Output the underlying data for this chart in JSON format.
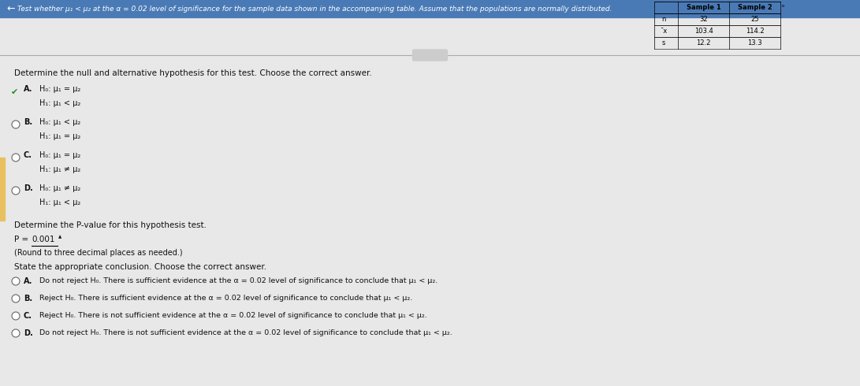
{
  "title_text": "Test whether μ₁ < μ₂ at the α = 0.02 level of significance for the sample data shown in the accompanying table. Assume that the populations are normally distributed.",
  "table_rows": [
    [
      "n",
      "32",
      "25"
    ],
    [
      "¯x",
      "103.4",
      "114.2"
    ],
    [
      "s",
      "12.2",
      "13.3"
    ]
  ],
  "section1_title": "Determine the null and alternative hypothesis for this test. Choose the correct answer.",
  "hyp_options": [
    [
      "A.",
      "H₀: μ₁ = μ₂",
      "H₁: μ₁ < μ₂",
      true
    ],
    [
      "B.",
      "H₀: μ₁ < μ₂",
      "H₁: μ₁ = μ₂",
      false
    ],
    [
      "C.",
      "H₀: μ₁ = μ₂",
      "H₁: μ₁ ≠ μ₂",
      false
    ],
    [
      "D.",
      "H₀: μ₁ ≠ μ₂",
      "H₁: μ₁ < μ₂",
      false
    ]
  ],
  "section2_title": "Determine the P-value for this hypothesis test.",
  "pvalue": "0.001",
  "pvalue_note": "(Round to three decimal places as needed.)",
  "section3_title": "State the appropriate conclusion. Choose the correct answer.",
  "conc_options": [
    [
      "A.",
      "Do not reject H₀. There is sufficient evidence at the α = 0.02 level of significance to conclude that μ₁ < μ₂."
    ],
    [
      "B.",
      "Reject H₀. There is sufficient evidence at the α = 0.02 level of significance to conclude that μ₁ < μ₂."
    ],
    [
      "C.",
      "Reject H₀. There is not sufficient evidence at the α = 0.02 level of significance to conclude that μ₁ < μ₂."
    ],
    [
      "D.",
      "Do not reject H₀. There is not sufficient evidence at the α = 0.02 level of significance to conclude that μ₁ < μ₂."
    ]
  ],
  "bg_color": "#e8e8e8",
  "content_bg": "#f0f0f0",
  "blue_bar": "#4a7ab5",
  "text_color": "#111111",
  "check_color": "#228B22"
}
